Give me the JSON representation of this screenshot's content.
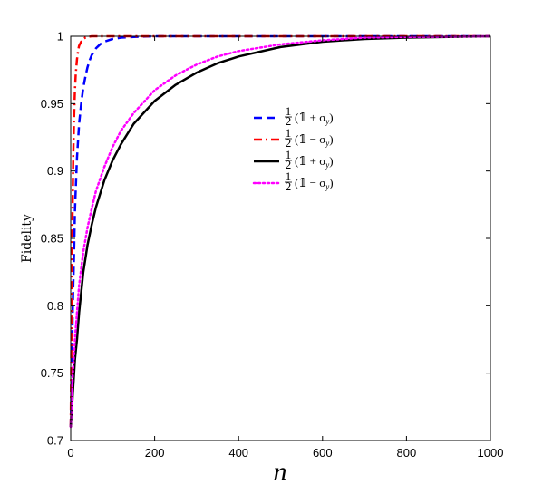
{
  "chart_data": {
    "type": "line",
    "title": "",
    "xlabel": "n",
    "ylabel": "Fidelity",
    "xlim": [
      0,
      1000
    ],
    "ylim": [
      0.7,
      1.0
    ],
    "xticks": [
      "0",
      "200",
      "400",
      "600",
      "800",
      "1000"
    ],
    "yticks": [
      "0.7",
      "0.75",
      "0.8",
      "0.85",
      "0.9",
      "0.95",
      "1"
    ],
    "grid": false,
    "legend_position": "center",
    "legend_labels_note": "rendered as math: fraction 1 over 2 followed by bracket text",
    "series": [
      {
        "name": "½(𝟙 + σ_y)",
        "name_num": "1",
        "name_den": "2",
        "name_body": "(𝟙 + σ",
        "name_sub": "y",
        "name_close": ")",
        "color": "#0000ff",
        "style": "dashed",
        "x": [
          0,
          3,
          5,
          8,
          10,
          13,
          15,
          18,
          20,
          25,
          30,
          35,
          40,
          45,
          50,
          60,
          70,
          80,
          90,
          100,
          120,
          150,
          200,
          300,
          500,
          1000
        ],
        "y": [
          0.71,
          0.76,
          0.8,
          0.84,
          0.87,
          0.895,
          0.91,
          0.925,
          0.935,
          0.95,
          0.962,
          0.97,
          0.977,
          0.982,
          0.986,
          0.991,
          0.994,
          0.996,
          0.997,
          0.998,
          0.999,
          0.9995,
          1.0,
          1.0,
          1.0,
          1.0
        ]
      },
      {
        "name": "½(𝟙 − σ_y)",
        "name_num": "1",
        "name_den": "2",
        "name_body": "(𝟙 − σ",
        "name_sub": "y",
        "name_close": ")",
        "color": "#ff0000",
        "style": "dashdot",
        "x": [
          0,
          2,
          4,
          6,
          8,
          10,
          12,
          15,
          18,
          20,
          25,
          30,
          35,
          40,
          50,
          60,
          80,
          100,
          200,
          1000
        ],
        "y": [
          0.71,
          0.79,
          0.86,
          0.91,
          0.94,
          0.96,
          0.972,
          0.983,
          0.99,
          0.993,
          0.996,
          0.998,
          0.999,
          0.9995,
          1.0,
          1.0,
          1.0,
          1.0,
          1.0,
          1.0
        ]
      },
      {
        "name": "½(𝟙 + σ_y)",
        "name_num": "1",
        "name_den": "2",
        "name_body": "(𝟙 + σ",
        "name_sub": "y",
        "name_close": ")",
        "color": "#000000",
        "style": "solid",
        "x": [
          0,
          5,
          10,
          15,
          20,
          30,
          40,
          50,
          60,
          80,
          100,
          120,
          150,
          200,
          250,
          300,
          350,
          400,
          500,
          600,
          700,
          800,
          900,
          1000
        ],
        "y": [
          0.71,
          0.735,
          0.76,
          0.775,
          0.795,
          0.825,
          0.845,
          0.86,
          0.873,
          0.893,
          0.908,
          0.92,
          0.935,
          0.952,
          0.964,
          0.973,
          0.98,
          0.985,
          0.992,
          0.996,
          0.998,
          0.999,
          0.9995,
          1.0
        ]
      },
      {
        "name": "½(𝟙 − σ_y)",
        "name_num": "1",
        "name_den": "2",
        "name_body": "(𝟙 − σ",
        "name_sub": "y",
        "name_close": ")",
        "color": "#ff00ff",
        "style": "dotted",
        "x": [
          0,
          5,
          10,
          15,
          20,
          30,
          40,
          50,
          60,
          80,
          100,
          120,
          150,
          200,
          250,
          300,
          350,
          400,
          500,
          600,
          700,
          800,
          1000
        ],
        "y": [
          0.71,
          0.75,
          0.775,
          0.795,
          0.815,
          0.84,
          0.858,
          0.872,
          0.885,
          0.903,
          0.918,
          0.93,
          0.943,
          0.96,
          0.971,
          0.979,
          0.985,
          0.989,
          0.994,
          0.997,
          0.999,
          0.9995,
          1.0
        ]
      }
    ]
  }
}
